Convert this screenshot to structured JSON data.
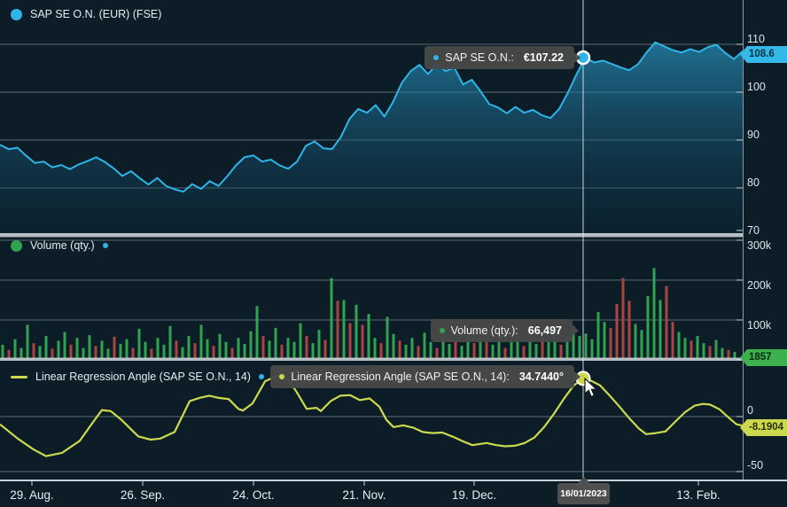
{
  "legends": {
    "price": "SAP SE O.N. (EUR) (FSE)",
    "volume": "Volume (qty.)",
    "lra": "Linear Regression Angle (SAP SE O.N., 14)"
  },
  "tooltips": {
    "price": {
      "label": "SAP SE O.N.:",
      "value": "€107.22"
    },
    "volume": {
      "label": "Volume (qty.):",
      "value": "66,497"
    },
    "lra": {
      "label": "Linear Regression Angle (SAP SE O.N., 14):",
      "value": "34.7440°"
    }
  },
  "badges": {
    "price": "108.6",
    "volume": "1857",
    "lra": "-8.1904",
    "date": "16/01/2023"
  },
  "colors": {
    "background": "#0c1d28",
    "price_line": "#2eb5e8",
    "price_fill_top": "rgba(41,147,191,0.70)",
    "price_fill_bottom": "rgba(9,46,66,0.22)",
    "volume_up": "#2fa34e",
    "volume_down": "#aa4441",
    "lra_line": "#cdd94d",
    "grid": "rgba(225,235,240,0.38)",
    "separator": "#b6bfc4",
    "crosshair": "rgba(235,242,246,0.85)",
    "badge_price_bg": "#35b9e9",
    "badge_volume_bg": "#3cb14d",
    "badge_lra_bg": "#cdd94d",
    "tooltip_bg": "#484848"
  },
  "x_axis": {
    "ticks": [
      {
        "label": "29. Aug.",
        "x": 36
      },
      {
        "label": "26. Sep.",
        "x": 161
      },
      {
        "label": "24. Oct.",
        "x": 286
      },
      {
        "label": "21. Nov.",
        "x": 411
      },
      {
        "label": "19. Dec.",
        "x": 535
      },
      {
        "label": "13. Feb.",
        "x": 788
      }
    ],
    "crosshair_x": 658,
    "crosshair_date": "16/01/2023"
  },
  "chart_data": [
    {
      "type": "area",
      "name": "SAP SE O.N. (EUR) (FSE)",
      "title": "SAP SE O.N. (EUR) (FSE)",
      "ylabel": "EUR",
      "ylim": [
        70,
        112
      ],
      "yticks": [
        110,
        100,
        90,
        80,
        70
      ],
      "grid": true,
      "last_value": 108.6,
      "hover": {
        "value": 107.22,
        "x": 658,
        "date": "16/01/2023"
      },
      "values": [
        89.0,
        88.1,
        88.4,
        86.7,
        85.2,
        85.5,
        84.3,
        84.8,
        83.9,
        84.9,
        85.6,
        86.4,
        85.4,
        84.1,
        82.5,
        83.5,
        82.0,
        80.7,
        82.1,
        80.4,
        79.7,
        79.2,
        80.8,
        79.8,
        81.4,
        80.4,
        82.4,
        84.7,
        86.4,
        86.8,
        85.5,
        85.9,
        84.7,
        84.0,
        85.5,
        88.8,
        89.7,
        88.3,
        88.1,
        90.6,
        94.4,
        96.5,
        95.7,
        97.3,
        94.9,
        98.0,
        102.0,
        104.4,
        105.7,
        103.8,
        105.9,
        104.4,
        105.1,
        101.6,
        102.6,
        100.2,
        97.5,
        96.8,
        95.6,
        96.9,
        95.7,
        96.3,
        95.2,
        94.6,
        96.5,
        99.9,
        103.8,
        107.22,
        106.2,
        106.6,
        105.9,
        105.2,
        104.6,
        105.8,
        108.3,
        110.4,
        109.6,
        108.8,
        108.3,
        109.0,
        108.4,
        109.4,
        109.9,
        108.2,
        106.9,
        108.6
      ],
      "marker_index": 67
    },
    {
      "type": "bar",
      "name": "Volume (qty.)",
      "ylim": [
        0,
        300000
      ],
      "yticks": [
        "300k",
        "200k",
        "100k"
      ],
      "grid": true,
      "last_value": 1857,
      "hover": {
        "value": 66497,
        "x": 658
      },
      "unit": "k",
      "values": [
        [
          38,
          "g"
        ],
        [
          25,
          "r"
        ],
        [
          52,
          "g"
        ],
        [
          30,
          "g"
        ],
        [
          88,
          "g"
        ],
        [
          42,
          "r"
        ],
        [
          35,
          "g"
        ],
        [
          60,
          "g"
        ],
        [
          28,
          "r"
        ],
        [
          48,
          "g"
        ],
        [
          70,
          "g"
        ],
        [
          38,
          "r"
        ],
        [
          55,
          "g"
        ],
        [
          30,
          "g"
        ],
        [
          62,
          "g"
        ],
        [
          35,
          "r"
        ],
        [
          48,
          "g"
        ],
        [
          28,
          "g"
        ],
        [
          58,
          "r"
        ],
        [
          40,
          "g"
        ],
        [
          52,
          "g"
        ],
        [
          30,
          "r"
        ],
        [
          78,
          "g"
        ],
        [
          45,
          "g"
        ],
        [
          28,
          "r"
        ],
        [
          55,
          "g"
        ],
        [
          38,
          "g"
        ],
        [
          85,
          "g"
        ],
        [
          48,
          "r"
        ],
        [
          32,
          "g"
        ],
        [
          60,
          "g"
        ],
        [
          42,
          "r"
        ],
        [
          88,
          "g"
        ],
        [
          52,
          "g"
        ],
        [
          35,
          "r"
        ],
        [
          65,
          "g"
        ],
        [
          45,
          "g"
        ],
        [
          30,
          "r"
        ],
        [
          55,
          "g"
        ],
        [
          40,
          "g"
        ],
        [
          72,
          "g"
        ],
        [
          135,
          "g"
        ],
        [
          60,
          "r"
        ],
        [
          48,
          "g"
        ],
        [
          80,
          "g"
        ],
        [
          38,
          "r"
        ],
        [
          55,
          "g"
        ],
        [
          45,
          "g"
        ],
        [
          92,
          "g"
        ],
        [
          60,
          "r"
        ],
        [
          42,
          "g"
        ],
        [
          75,
          "g"
        ],
        [
          50,
          "r"
        ],
        [
          205,
          "g"
        ],
        [
          148,
          "r"
        ],
        [
          150,
          "g"
        ],
        [
          92,
          "r"
        ],
        [
          138,
          "g"
        ],
        [
          88,
          "r"
        ],
        [
          115,
          "g"
        ],
        [
          55,
          "g"
        ],
        [
          42,
          "r"
        ],
        [
          108,
          "g"
        ],
        [
          65,
          "g"
        ],
        [
          48,
          "r"
        ],
        [
          38,
          "g"
        ],
        [
          55,
          "g"
        ],
        [
          35,
          "r"
        ],
        [
          68,
          "g"
        ],
        [
          45,
          "g"
        ],
        [
          30,
          "r"
        ],
        [
          58,
          "g"
        ],
        [
          40,
          "g"
        ],
        [
          52,
          "r"
        ],
        [
          35,
          "g"
        ],
        [
          62,
          "g"
        ],
        [
          42,
          "r"
        ],
        [
          55,
          "g"
        ],
        [
          68,
          "r"
        ],
        [
          38,
          "g"
        ],
        [
          48,
          "g"
        ],
        [
          30,
          "r"
        ],
        [
          45,
          "g"
        ],
        [
          58,
          "g"
        ],
        [
          35,
          "r"
        ],
        [
          50,
          "g"
        ],
        [
          40,
          "g"
        ],
        [
          65,
          "r"
        ],
        [
          45,
          "g"
        ],
        [
          55,
          "g"
        ],
        [
          38,
          "r"
        ],
        [
          48,
          "g"
        ],
        [
          85,
          "g"
        ],
        [
          60,
          "g"
        ],
        [
          66,
          "g"
        ],
        [
          52,
          "g"
        ],
        [
          120,
          "g"
        ],
        [
          95,
          "g"
        ],
        [
          80,
          "r"
        ],
        [
          140,
          "r"
        ],
        [
          205,
          "r"
        ],
        [
          148,
          "r"
        ],
        [
          90,
          "g"
        ],
        [
          75,
          "g"
        ],
        [
          160,
          "g"
        ],
        [
          230,
          "g"
        ],
        [
          150,
          "g"
        ],
        [
          185,
          "r"
        ],
        [
          95,
          "r"
        ],
        [
          70,
          "g"
        ],
        [
          55,
          "g"
        ],
        [
          48,
          "r"
        ],
        [
          60,
          "g"
        ],
        [
          42,
          "g"
        ],
        [
          35,
          "r"
        ],
        [
          50,
          "g"
        ],
        [
          30,
          "g"
        ],
        [
          25,
          "r"
        ],
        [
          20,
          "g"
        ],
        [
          2,
          "g"
        ]
      ]
    },
    {
      "type": "line",
      "name": "Linear Regression Angle (SAP SE O.N., 14)",
      "ylim": [
        -55,
        40
      ],
      "yticks": [
        0,
        -50
      ],
      "grid": true,
      "last_value": -8.1904,
      "hover": {
        "value": 34.744,
        "x": 658
      },
      "points": [
        [
          0,
          -7
        ],
        [
          20,
          -20
        ],
        [
          38,
          -30
        ],
        [
          52,
          -36
        ],
        [
          70,
          -33
        ],
        [
          90,
          -22
        ],
        [
          105,
          -5
        ],
        [
          115,
          6
        ],
        [
          125,
          5
        ],
        [
          137,
          -3
        ],
        [
          156,
          -18
        ],
        [
          170,
          -21
        ],
        [
          181,
          -20
        ],
        [
          197,
          -14
        ],
        [
          214,
          14
        ],
        [
          225,
          17
        ],
        [
          236,
          19
        ],
        [
          247,
          17
        ],
        [
          258,
          16
        ],
        [
          269,
          7
        ],
        [
          274,
          5.5
        ],
        [
          285,
          12
        ],
        [
          299,
          32
        ],
        [
          312,
          37
        ],
        [
          326,
          33
        ],
        [
          335,
          22
        ],
        [
          346,
          7
        ],
        [
          357,
          8
        ],
        [
          362,
          5
        ],
        [
          373,
          14
        ],
        [
          384,
          19
        ],
        [
          395,
          19.5
        ],
        [
          406,
          15
        ],
        [
          417,
          16.5
        ],
        [
          428,
          9
        ],
        [
          436,
          -3
        ],
        [
          444,
          -9.5
        ],
        [
          455,
          -8
        ],
        [
          466,
          -10
        ],
        [
          477,
          -14
        ],
        [
          488,
          -15
        ],
        [
          499,
          -14.5
        ],
        [
          510,
          -18
        ],
        [
          521,
          -22
        ],
        [
          533,
          -26
        ],
        [
          549,
          -24
        ],
        [
          560,
          -26
        ],
        [
          570,
          -27
        ],
        [
          581,
          -26.5
        ],
        [
          592,
          -24
        ],
        [
          603,
          -19
        ],
        [
          614,
          -9.5
        ],
        [
          625,
          2.5
        ],
        [
          636,
          16
        ],
        [
          647,
          28
        ],
        [
          658,
          34.744
        ],
        [
          666,
          33
        ],
        [
          677,
          28.5
        ],
        [
          688,
          19
        ],
        [
          699,
          9
        ],
        [
          710,
          -1.5
        ],
        [
          721,
          -11
        ],
        [
          729,
          -16
        ],
        [
          740,
          -15
        ],
        [
          751,
          -13.5
        ],
        [
          762,
          -4.5
        ],
        [
          773,
          4
        ],
        [
          784,
          10
        ],
        [
          793,
          11.5
        ],
        [
          801,
          11
        ],
        [
          812,
          6.5
        ],
        [
          823,
          -1.5
        ],
        [
          831,
          -7
        ],
        [
          838,
          -8.19
        ]
      ]
    }
  ]
}
